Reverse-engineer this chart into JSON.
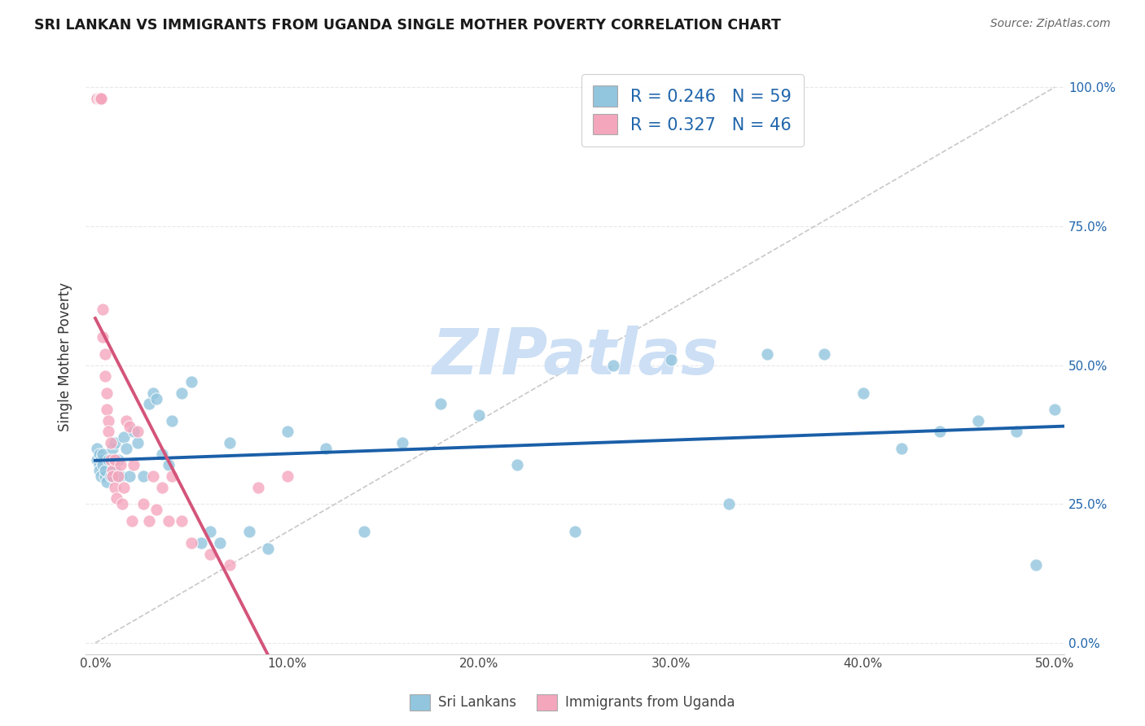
{
  "title": "SRI LANKAN VS IMMIGRANTS FROM UGANDA SINGLE MOTHER POVERTY CORRELATION CHART",
  "source": "Source: ZipAtlas.com",
  "ylabel_label": "Single Mother Poverty",
  "legend_labels": [
    "Sri Lankans",
    "Immigrants from Uganda"
  ],
  "legend_r_n": [
    {
      "R": "0.246",
      "N": "59"
    },
    {
      "R": "0.327",
      "N": "46"
    }
  ],
  "color_blue": "#92c5de",
  "color_pink": "#f4a6bd",
  "trend_blue": "#1a5fa8",
  "trend_pink": "#d4547a",
  "diag_color": "#c8c8c8",
  "watermark": "ZIPatlas",
  "watermark_color": "#ccdff5",
  "background": "#ffffff",
  "title_color": "#1a1a1a",
  "source_color": "#666666",
  "tick_color_x": "#444444",
  "tick_color_y": "#2166ac",
  "ylabel_color": "#333333",
  "grid_color": "#e8e8e8",
  "x_lim": [
    0.0,
    0.505
  ],
  "y_lim": [
    -0.02,
    1.05
  ],
  "x_ticks": [
    0.0,
    0.1,
    0.2,
    0.3,
    0.4,
    0.5
  ],
  "x_tick_labels": [
    "0.0%",
    "10.0%",
    "20.0%",
    "30.0%",
    "40.0%",
    "50.0%"
  ],
  "y_ticks": [
    0.0,
    0.25,
    0.5,
    0.75,
    1.0
  ],
  "y_tick_labels": [
    "0.0%",
    "25.0%",
    "50.0%",
    "75.0%",
    "100.0%"
  ],
  "sri_x": [
    0.001,
    0.001,
    0.002,
    0.002,
    0.002,
    0.003,
    0.003,
    0.004,
    0.004,
    0.005,
    0.005,
    0.006,
    0.007,
    0.008,
    0.009,
    0.01,
    0.01,
    0.012,
    0.013,
    0.015,
    0.016,
    0.018,
    0.02,
    0.022,
    0.025,
    0.028,
    0.03,
    0.032,
    0.035,
    0.038,
    0.04,
    0.045,
    0.05,
    0.055,
    0.06,
    0.065,
    0.07,
    0.08,
    0.09,
    0.1,
    0.12,
    0.14,
    0.16,
    0.18,
    0.2,
    0.22,
    0.25,
    0.27,
    0.3,
    0.33,
    0.35,
    0.38,
    0.4,
    0.42,
    0.44,
    0.46,
    0.48,
    0.49,
    0.5
  ],
  "sri_y": [
    0.33,
    0.35,
    0.32,
    0.34,
    0.31,
    0.3,
    0.33,
    0.32,
    0.34,
    0.3,
    0.31,
    0.29,
    0.33,
    0.3,
    0.35,
    0.31,
    0.36,
    0.33,
    0.3,
    0.37,
    0.35,
    0.3,
    0.38,
    0.36,
    0.3,
    0.43,
    0.45,
    0.44,
    0.34,
    0.32,
    0.4,
    0.45,
    0.47,
    0.18,
    0.2,
    0.18,
    0.36,
    0.2,
    0.17,
    0.38,
    0.35,
    0.2,
    0.36,
    0.43,
    0.41,
    0.32,
    0.2,
    0.5,
    0.51,
    0.25,
    0.52,
    0.52,
    0.45,
    0.35,
    0.38,
    0.4,
    0.38,
    0.14,
    0.42
  ],
  "ug_x": [
    0.001,
    0.001,
    0.001,
    0.001,
    0.001,
    0.002,
    0.002,
    0.003,
    0.003,
    0.004,
    0.004,
    0.005,
    0.005,
    0.006,
    0.006,
    0.007,
    0.007,
    0.008,
    0.008,
    0.009,
    0.009,
    0.01,
    0.01,
    0.011,
    0.012,
    0.013,
    0.014,
    0.015,
    0.016,
    0.018,
    0.019,
    0.02,
    0.022,
    0.025,
    0.028,
    0.03,
    0.032,
    0.035,
    0.038,
    0.04,
    0.045,
    0.05,
    0.06,
    0.07,
    0.085,
    0.1
  ],
  "ug_y": [
    0.98,
    0.98,
    0.98,
    0.98,
    0.98,
    0.98,
    0.98,
    0.98,
    0.98,
    0.6,
    0.55,
    0.52,
    0.48,
    0.45,
    0.42,
    0.4,
    0.38,
    0.36,
    0.33,
    0.31,
    0.3,
    0.28,
    0.33,
    0.26,
    0.3,
    0.32,
    0.25,
    0.28,
    0.4,
    0.39,
    0.22,
    0.32,
    0.38,
    0.25,
    0.22,
    0.3,
    0.24,
    0.28,
    0.22,
    0.3,
    0.22,
    0.18,
    0.16,
    0.14,
    0.28,
    0.3
  ]
}
